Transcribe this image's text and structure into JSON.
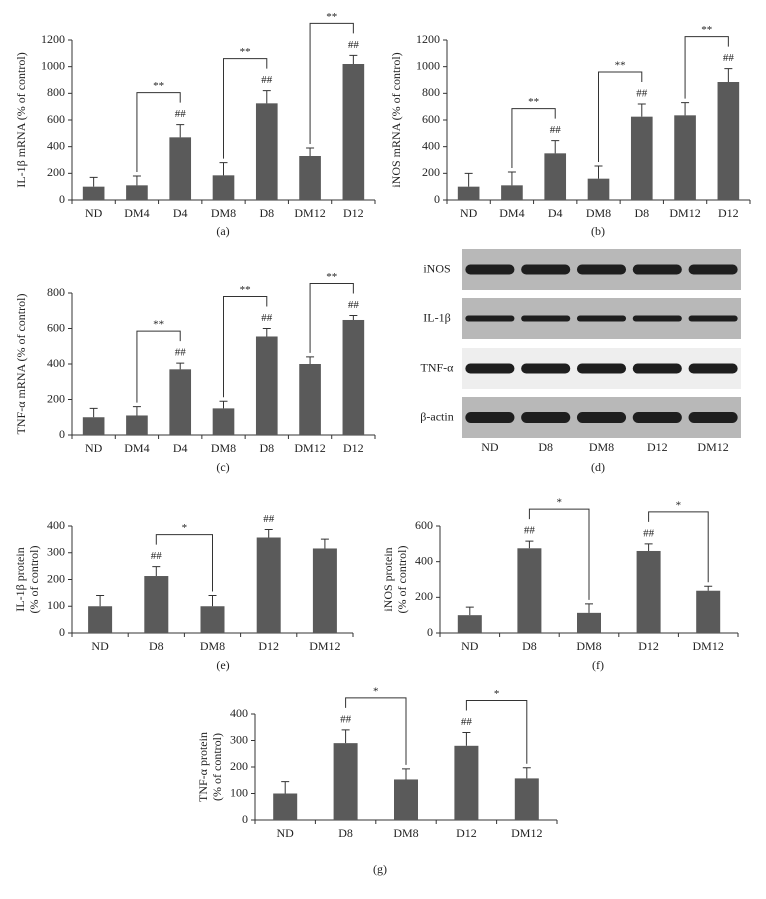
{
  "chart_data": [
    {
      "type": "bar",
      "caption": "(a)",
      "ylabel": [
        "IL-1β mRNA (% of control)"
      ],
      "categories": [
        "ND",
        "DM4",
        "D4",
        "DM8",
        "D8",
        "DM12",
        "D12"
      ],
      "values": [
        100,
        110,
        470,
        185,
        725,
        330,
        1020
      ],
      "errors": [
        70,
        70,
        95,
        95,
        95,
        60,
        65
      ],
      "value_annotations": [
        null,
        null,
        "##",
        null,
        "##",
        null,
        "##"
      ],
      "brackets": [
        {
          "from": "DM4",
          "to": "D4",
          "label": "**"
        },
        {
          "from": "DM8",
          "to": "D8",
          "label": "**"
        },
        {
          "from": "DM12",
          "to": "D12",
          "label": "**"
        }
      ],
      "color": "#5a5a5a",
      "ylim": [
        0,
        1200
      ],
      "yticks": [
        0,
        200,
        400,
        600,
        800,
        1000,
        1200
      ]
    },
    {
      "type": "bar",
      "caption": "(b)",
      "ylabel": [
        "iNOS mRNA (% of control)"
      ],
      "categories": [
        "ND",
        "DM4",
        "D4",
        "DM8",
        "D8",
        "DM12",
        "D12"
      ],
      "values": [
        100,
        110,
        350,
        160,
        625,
        635,
        885
      ],
      "errors": [
        100,
        100,
        95,
        95,
        95,
        95,
        100
      ],
      "value_annotations": [
        null,
        null,
        "##",
        null,
        "##",
        null,
        "##"
      ],
      "brackets": [
        {
          "from": "DM4",
          "to": "D4",
          "label": "**"
        },
        {
          "from": "DM8",
          "to": "D8",
          "label": "**"
        },
        {
          "from": "DM12",
          "to": "D12",
          "label": "**"
        }
      ],
      "color": "#5a5a5a",
      "ylim": [
        0,
        1200
      ],
      "yticks": [
        0,
        200,
        400,
        600,
        800,
        1000,
        1200
      ]
    },
    {
      "type": "bar",
      "caption": "(c)",
      "ylabel": [
        "TNF-α mRNA (% of control)"
      ],
      "categories": [
        "ND",
        "DM4",
        "D4",
        "DM8",
        "D8",
        "DM12",
        "D12"
      ],
      "values": [
        100,
        110,
        370,
        150,
        555,
        400,
        648
      ],
      "errors": [
        50,
        50,
        35,
        40,
        45,
        40,
        25
      ],
      "value_annotations": [
        null,
        null,
        "##",
        null,
        "##",
        null,
        "##"
      ],
      "brackets": [
        {
          "from": "DM4",
          "to": "D4",
          "label": "**"
        },
        {
          "from": "DM8",
          "to": "D8",
          "label": "**"
        },
        {
          "from": "DM12",
          "to": "D12",
          "label": "**"
        }
      ],
      "color": "#5a5a5a",
      "ylim": [
        0,
        800
      ],
      "yticks": [
        0,
        200,
        400,
        600,
        800
      ]
    },
    {
      "type": "bar",
      "caption": "(e)",
      "ylabel": [
        "IL-1β protein",
        "(% of control)"
      ],
      "categories": [
        "ND",
        "D8",
        "DM8",
        "D12",
        "DM12"
      ],
      "values": [
        100,
        213,
        100,
        357,
        316
      ],
      "errors": [
        40,
        35,
        40,
        30,
        35
      ],
      "value_annotations": [
        null,
        "##",
        null,
        "##",
        null
      ],
      "brackets": [
        {
          "from": "D8",
          "to": "DM8",
          "label": "*"
        }
      ],
      "color": "#5a5a5a",
      "ylim": [
        0,
        400
      ],
      "yticks": [
        0,
        100,
        200,
        300,
        400
      ]
    },
    {
      "type": "bar",
      "caption": "(f)",
      "ylabel": [
        "iNOS protein",
        "(% of control)"
      ],
      "categories": [
        "ND",
        "D8",
        "DM8",
        "D12",
        "DM12"
      ],
      "values": [
        100,
        475,
        113,
        460,
        237
      ],
      "errors": [
        45,
        40,
        50,
        40,
        25
      ],
      "value_annotations": [
        null,
        "##",
        null,
        "##",
        null
      ],
      "brackets": [
        {
          "from": "D8",
          "to": "DM8",
          "label": "*"
        },
        {
          "from": "D12",
          "to": "DM12",
          "label": "*"
        }
      ],
      "color": "#5a5a5a",
      "ylim": [
        0,
        600
      ],
      "yticks": [
        0,
        200,
        400,
        600
      ]
    },
    {
      "type": "bar",
      "caption": "(g)",
      "ylabel": [
        "TNF-α protein",
        "(% of control)"
      ],
      "categories": [
        "ND",
        "D8",
        "DM8",
        "D12",
        "DM12"
      ],
      "values": [
        100,
        290,
        153,
        280,
        157
      ],
      "errors": [
        45,
        50,
        40,
        50,
        40
      ],
      "value_annotations": [
        null,
        "##",
        null,
        "##",
        null
      ],
      "brackets": [
        {
          "from": "D8",
          "to": "DM8",
          "label": "*"
        },
        {
          "from": "D12",
          "to": "DM12",
          "label": "*"
        }
      ],
      "color": "#5a5a5a",
      "ylim": [
        0,
        400
      ],
      "yticks": [
        0,
        100,
        200,
        300,
        400
      ]
    }
  ],
  "blot": {
    "rows": [
      "iNOS",
      "IL-1β",
      "TNF-α",
      "β-actin"
    ],
    "lanes": [
      "ND",
      "D8",
      "DM8",
      "D12",
      "DM12"
    ],
    "caption": "(d)"
  }
}
